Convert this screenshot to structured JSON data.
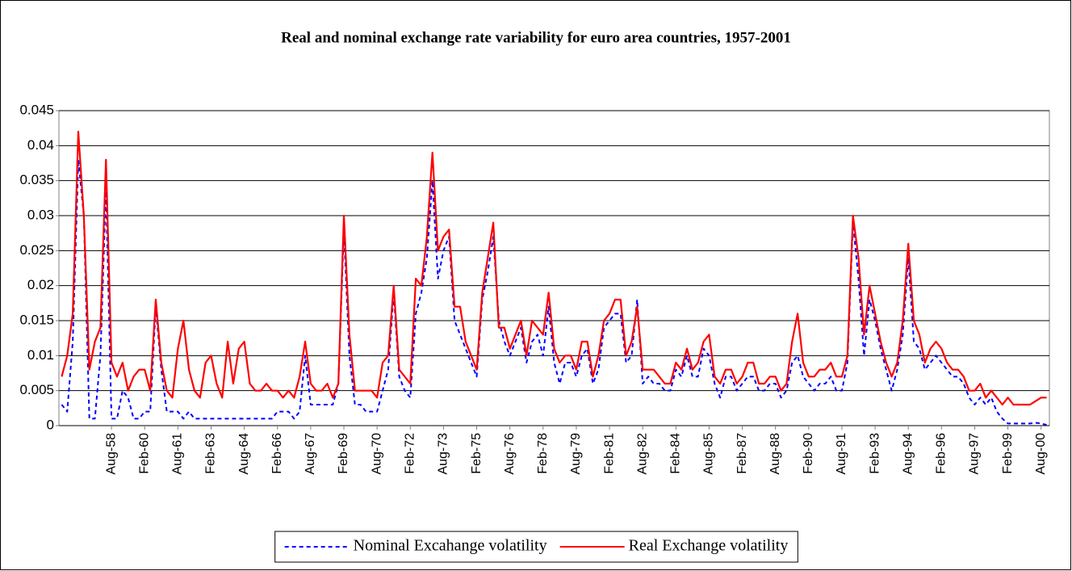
{
  "chart_data": {
    "type": "line",
    "title": "Real and nominal exchange rate variability for euro area countries, 1957-2001",
    "categories": [
      null,
      null,
      null,
      null,
      null,
      null,
      null,
      null,
      null,
      "Aug-58",
      null,
      null,
      null,
      null,
      null,
      "Feb-60",
      null,
      null,
      null,
      null,
      null,
      "Aug-61",
      null,
      null,
      null,
      null,
      null,
      "Feb-63",
      null,
      null,
      null,
      null,
      null,
      "Aug-64",
      null,
      null,
      null,
      null,
      null,
      "Feb-66",
      null,
      null,
      null,
      null,
      null,
      "Aug-67",
      null,
      null,
      null,
      null,
      null,
      "Feb-69",
      null,
      null,
      null,
      null,
      null,
      "Aug-70",
      null,
      null,
      null,
      null,
      null,
      "Feb-72",
      null,
      null,
      null,
      null,
      null,
      "Aug-73",
      null,
      null,
      null,
      null,
      null,
      "Feb-75",
      null,
      null,
      null,
      null,
      null,
      "Aug-76",
      null,
      null,
      null,
      null,
      null,
      "Feb-78",
      null,
      null,
      null,
      null,
      null,
      "Aug-79",
      null,
      null,
      null,
      null,
      null,
      "Feb-81",
      null,
      null,
      null,
      null,
      null,
      "Aug-82",
      null,
      null,
      null,
      null,
      null,
      "Feb-84",
      null,
      null,
      null,
      null,
      null,
      "Aug-85",
      null,
      null,
      null,
      null,
      null,
      "Feb-87",
      null,
      null,
      null,
      null,
      null,
      "Aug-88",
      null,
      null,
      null,
      null,
      null,
      "Feb-90",
      null,
      null,
      null,
      null,
      null,
      "Aug-91",
      null,
      null,
      null,
      null,
      null,
      "Feb-93",
      null,
      null,
      null,
      null,
      null,
      "Aug-94",
      null,
      null,
      null,
      null,
      null,
      "Feb-96",
      null,
      null,
      null,
      null,
      null,
      "Aug-97",
      null,
      null,
      null,
      null,
      null,
      "Feb-99",
      null,
      null,
      null,
      null,
      null,
      "Aug-00",
      null
    ],
    "series": [
      {
        "name": "Nominal Excahange volatility",
        "color": "#0000ff",
        "dash": true,
        "values": [
          0.003,
          0.002,
          0.012,
          0.038,
          0.03,
          0.001,
          0.001,
          0.01,
          0.034,
          0.001,
          0.001,
          0.005,
          0.004,
          0.001,
          0.001,
          0.002,
          0.002,
          0.017,
          0.008,
          0.002,
          0.002,
          0.002,
          0.001,
          0.002,
          0.001,
          0.001,
          0.001,
          0.001,
          0.001,
          0.001,
          0.001,
          0.001,
          0.001,
          0.001,
          0.001,
          0.001,
          0.001,
          0.001,
          0.001,
          0.002,
          0.002,
          0.002,
          0.001,
          0.002,
          0.01,
          0.003,
          0.003,
          0.003,
          0.003,
          0.003,
          0.006,
          0.028,
          0.01,
          0.003,
          0.003,
          0.002,
          0.002,
          0.002,
          0.005,
          0.008,
          0.019,
          0.007,
          0.005,
          0.004,
          0.016,
          0.019,
          0.024,
          0.035,
          0.021,
          0.025,
          0.027,
          0.015,
          0.013,
          0.011,
          0.009,
          0.007,
          0.018,
          0.022,
          0.027,
          0.015,
          0.012,
          0.01,
          0.012,
          0.014,
          0.009,
          0.012,
          0.013,
          0.01,
          0.017,
          0.009,
          0.006,
          0.009,
          0.009,
          0.007,
          0.01,
          0.011,
          0.006,
          0.008,
          0.014,
          0.015,
          0.016,
          0.016,
          0.009,
          0.01,
          0.018,
          0.006,
          0.007,
          0.006,
          0.006,
          0.005,
          0.005,
          0.008,
          0.007,
          0.01,
          0.007,
          0.007,
          0.011,
          0.01,
          0.006,
          0.004,
          0.007,
          0.007,
          0.005,
          0.006,
          0.007,
          0.007,
          0.005,
          0.005,
          0.006,
          0.006,
          0.004,
          0.005,
          0.009,
          0.01,
          0.007,
          0.006,
          0.005,
          0.006,
          0.006,
          0.007,
          0.005,
          0.005,
          0.009,
          0.029,
          0.021,
          0.01,
          0.018,
          0.015,
          0.011,
          0.008,
          0.005,
          0.008,
          0.013,
          0.024,
          0.012,
          0.011,
          0.008,
          0.009,
          0.01,
          0.009,
          0.008,
          0.007,
          0.007,
          0.006,
          0.004,
          0.003,
          0.004,
          0.003,
          0.004,
          0.002,
          0.001,
          0.0003,
          0.0003,
          0.0003,
          0.0003,
          0.0003,
          0.0004,
          0.0003,
          0.0001
        ]
      },
      {
        "name": "Real Exchange volatility",
        "color": "#ff0000",
        "dash": false,
        "values": [
          0.007,
          0.01,
          0.016,
          0.042,
          0.03,
          0.008,
          0.012,
          0.014,
          0.038,
          0.009,
          0.007,
          0.009,
          0.005,
          0.007,
          0.008,
          0.008,
          0.005,
          0.018,
          0.009,
          0.005,
          0.004,
          0.011,
          0.015,
          0.008,
          0.005,
          0.004,
          0.009,
          0.01,
          0.006,
          0.004,
          0.012,
          0.006,
          0.011,
          0.012,
          0.006,
          0.005,
          0.005,
          0.006,
          0.005,
          0.005,
          0.004,
          0.005,
          0.004,
          0.007,
          0.012,
          0.006,
          0.005,
          0.005,
          0.006,
          0.004,
          0.006,
          0.03,
          0.013,
          0.005,
          0.005,
          0.005,
          0.005,
          0.004,
          0.009,
          0.01,
          0.02,
          0.008,
          0.007,
          0.006,
          0.021,
          0.02,
          0.027,
          0.039,
          0.025,
          0.027,
          0.028,
          0.017,
          0.017,
          0.012,
          0.01,
          0.008,
          0.019,
          0.024,
          0.029,
          0.014,
          0.014,
          0.011,
          0.013,
          0.015,
          0.01,
          0.015,
          0.014,
          0.013,
          0.019,
          0.011,
          0.009,
          0.01,
          0.01,
          0.008,
          0.012,
          0.012,
          0.007,
          0.01,
          0.015,
          0.016,
          0.018,
          0.018,
          0.01,
          0.012,
          0.017,
          0.008,
          0.008,
          0.008,
          0.007,
          0.006,
          0.006,
          0.009,
          0.008,
          0.011,
          0.008,
          0.009,
          0.012,
          0.013,
          0.007,
          0.006,
          0.008,
          0.008,
          0.006,
          0.007,
          0.009,
          0.009,
          0.006,
          0.006,
          0.007,
          0.007,
          0.005,
          0.006,
          0.012,
          0.016,
          0.009,
          0.007,
          0.007,
          0.008,
          0.008,
          0.009,
          0.007,
          0.007,
          0.01,
          0.03,
          0.024,
          0.013,
          0.02,
          0.016,
          0.012,
          0.009,
          0.007,
          0.009,
          0.015,
          0.026,
          0.015,
          0.013,
          0.009,
          0.011,
          0.012,
          0.011,
          0.009,
          0.008,
          0.008,
          0.007,
          0.005,
          0.005,
          0.006,
          0.004,
          0.005,
          0.004,
          0.003,
          0.004,
          0.003,
          0.003,
          0.003,
          0.003,
          0.0035,
          0.004,
          0.004
        ]
      }
    ],
    "ylim": [
      0,
      0.045
    ],
    "yticks": [
      0,
      0.005,
      0.01,
      0.015,
      0.02,
      0.025,
      0.03,
      0.035,
      0.04,
      0.045
    ],
    "grid": true,
    "legend": "bottom"
  }
}
